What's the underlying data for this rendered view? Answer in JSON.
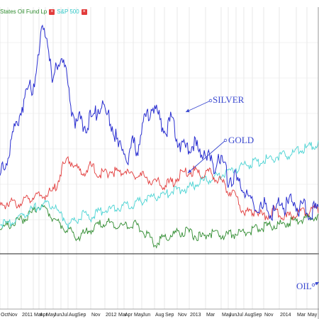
{
  "legend": {
    "item1": "States Oil Fund Lp",
    "item2": "S&P 500",
    "close_glyph": "×"
  },
  "chart_data": {
    "type": "line",
    "title": "",
    "xlabel": "",
    "ylabel": "",
    "grid": true,
    "tick_labels": [
      "Oct",
      "Nov",
      "2011",
      "Mar",
      "Apr",
      "May",
      "Jun",
      "Jul",
      "Aug",
      "Sep",
      "Nov",
      "2012",
      "Mar",
      "Apr",
      "May",
      "Jun",
      "Aug",
      "Sep",
      "Nov",
      "2013",
      "Mar",
      "May",
      "Jun",
      "Jul",
      "Aug",
      "Sep",
      "Nov",
      "2014",
      "Mar",
      "May"
    ],
    "annotations": [
      {
        "text": "SILVER",
        "series": "silver"
      },
      {
        "text": "GOLD",
        "series": "gold"
      },
      {
        "text": "OIL",
        "series": "oil"
      }
    ],
    "colors": {
      "silver": "#2a2fd0",
      "gold": "#e23b3b",
      "sp500": "#49d3d3",
      "oil": "#2e8b2e",
      "annotation": "#3b49d1"
    },
    "series": [
      {
        "key": "silver",
        "values": [
          255,
          245,
          215,
          190,
          170,
          150,
          135,
          125,
          95,
          40,
          55,
          130,
          95,
          85,
          115,
          160,
          180,
          175,
          185,
          175,
          170,
          155,
          165,
          175,
          190,
          220,
          215,
          230,
          210,
          215,
          185,
          172,
          155,
          165,
          185,
          190,
          175,
          200,
          210,
          220,
          215,
          210,
          225,
          215,
          230,
          245,
          220,
          240,
          260,
          255,
          265,
          270,
          285,
          290,
          300,
          305,
          295,
          310,
          305,
          285,
          300,
          295,
          290,
          305,
          300,
          310,
          305,
          300
        ]
      },
      {
        "key": "gold",
        "values": [
          295,
          290,
          292,
          288,
          285,
          280,
          282,
          278,
          270,
          240,
          230,
          240,
          250,
          238,
          246,
          250,
          245,
          248,
          244,
          252,
          250,
          255,
          258,
          262,
          265,
          260,
          250,
          248,
          245,
          250,
          245,
          255,
          260,
          272,
          280,
          300,
          305,
          300,
          310,
          305,
          300,
          312,
          308,
          306,
          304,
          300,
          302
        ]
      },
      {
        "key": "sp500",
        "values": [
          320,
          318,
          314,
          305,
          300,
          295,
          290,
          295,
          305,
          320,
          315,
          306,
          310,
          303,
          300,
          298,
          296,
          292,
          290,
          285,
          282,
          280,
          278,
          272,
          270,
          268,
          262,
          258,
          255,
          250,
          245,
          242,
          238,
          235,
          232,
          228,
          226,
          224,
          222,
          218,
          214,
          210,
          208
        ]
      },
      {
        "key": "oil",
        "values": [
          325,
          322,
          318,
          312,
          305,
          295,
          300,
          312,
          322,
          330,
          338,
          332,
          325,
          320,
          318,
          320,
          322,
          318,
          325,
          335,
          348,
          340,
          335,
          332,
          330,
          335,
          338,
          332,
          335,
          336,
          334,
          332,
          330,
          326,
          324,
          322,
          320,
          318,
          316,
          312,
          310,
          308
        ]
      }
    ]
  }
}
